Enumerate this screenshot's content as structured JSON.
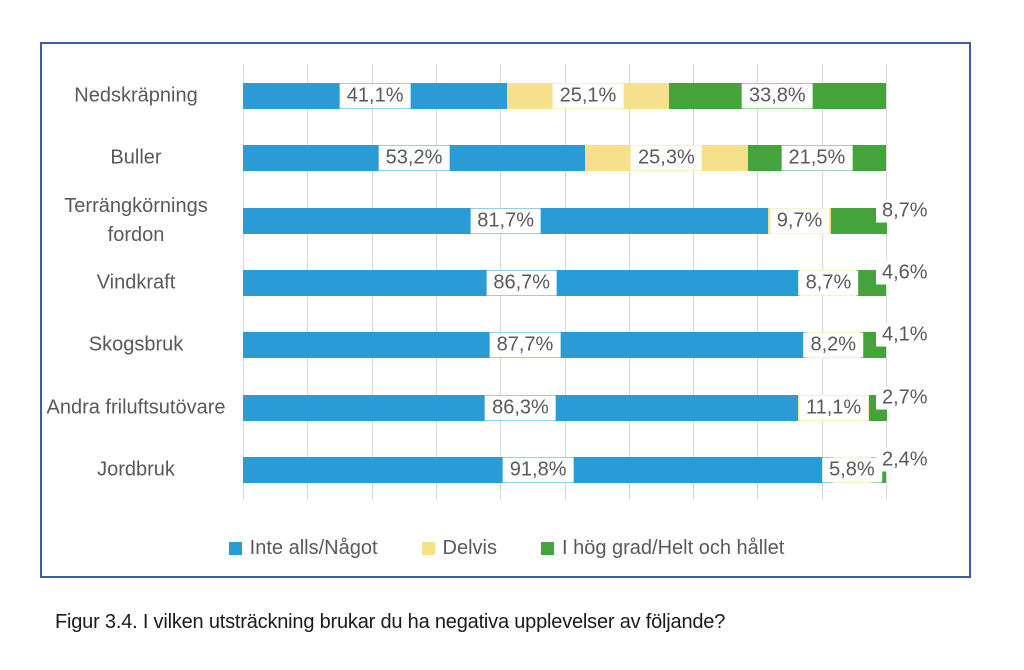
{
  "figure": {
    "caption": "Figur 3.4. I vilken utsträckning brukar du ha negativa upplevelser av följande?"
  },
  "chart_data": {
    "type": "bar",
    "variant": "horizontal-100pct-stacked",
    "title": "",
    "xlabel": "",
    "ylabel": "",
    "categories": [
      "Nedskräpning",
      "Buller",
      "Terrängkörnings fordon",
      "Vindkraft",
      "Skogsbruk",
      "Andra friluftsutövare",
      "Jordbruk"
    ],
    "series": [
      {
        "name": "Inte alls/Något",
        "color": "#2B9BD5",
        "values": [
          41.1,
          53.2,
          81.7,
          86.7,
          87.7,
          86.3,
          91.8
        ]
      },
      {
        "name": "Delvis",
        "color": "#F7E08C",
        "values": [
          25.1,
          25.3,
          9.7,
          8.7,
          8.2,
          11.1,
          5.8
        ]
      },
      {
        "name": "I hög grad/Helt och hållet",
        "color": "#45A33C",
        "values": [
          33.8,
          21.5,
          8.7,
          4.6,
          4.1,
          2.7,
          2.4
        ]
      }
    ],
    "value_labels": [
      [
        "41,1%",
        "25,1%",
        "33,8%"
      ],
      [
        "53,2%",
        "25,3%",
        "21,5%"
      ],
      [
        "81,7%",
        "9,7%",
        "8,7%"
      ],
      [
        "86,7%",
        "8,7%",
        "4,6%"
      ],
      [
        "87,7%",
        "8,2%",
        "4,1%"
      ],
      [
        "86,3%",
        "11,1%",
        "2,7%"
      ],
      [
        "91,8%",
        "5,8%",
        "2,4%"
      ]
    ],
    "xlim": [
      0,
      100
    ],
    "gridline_step": 10,
    "grid": true,
    "axis_tick_labels_visible": false,
    "legend_position": "bottom"
  },
  "style": {
    "label_text_color": "#595959",
    "grid_color": "#D8D8D8",
    "frame_border_color": "#3D5CA8",
    "caption_color": "#1A1A1A",
    "background": "#FFFFFF"
  }
}
